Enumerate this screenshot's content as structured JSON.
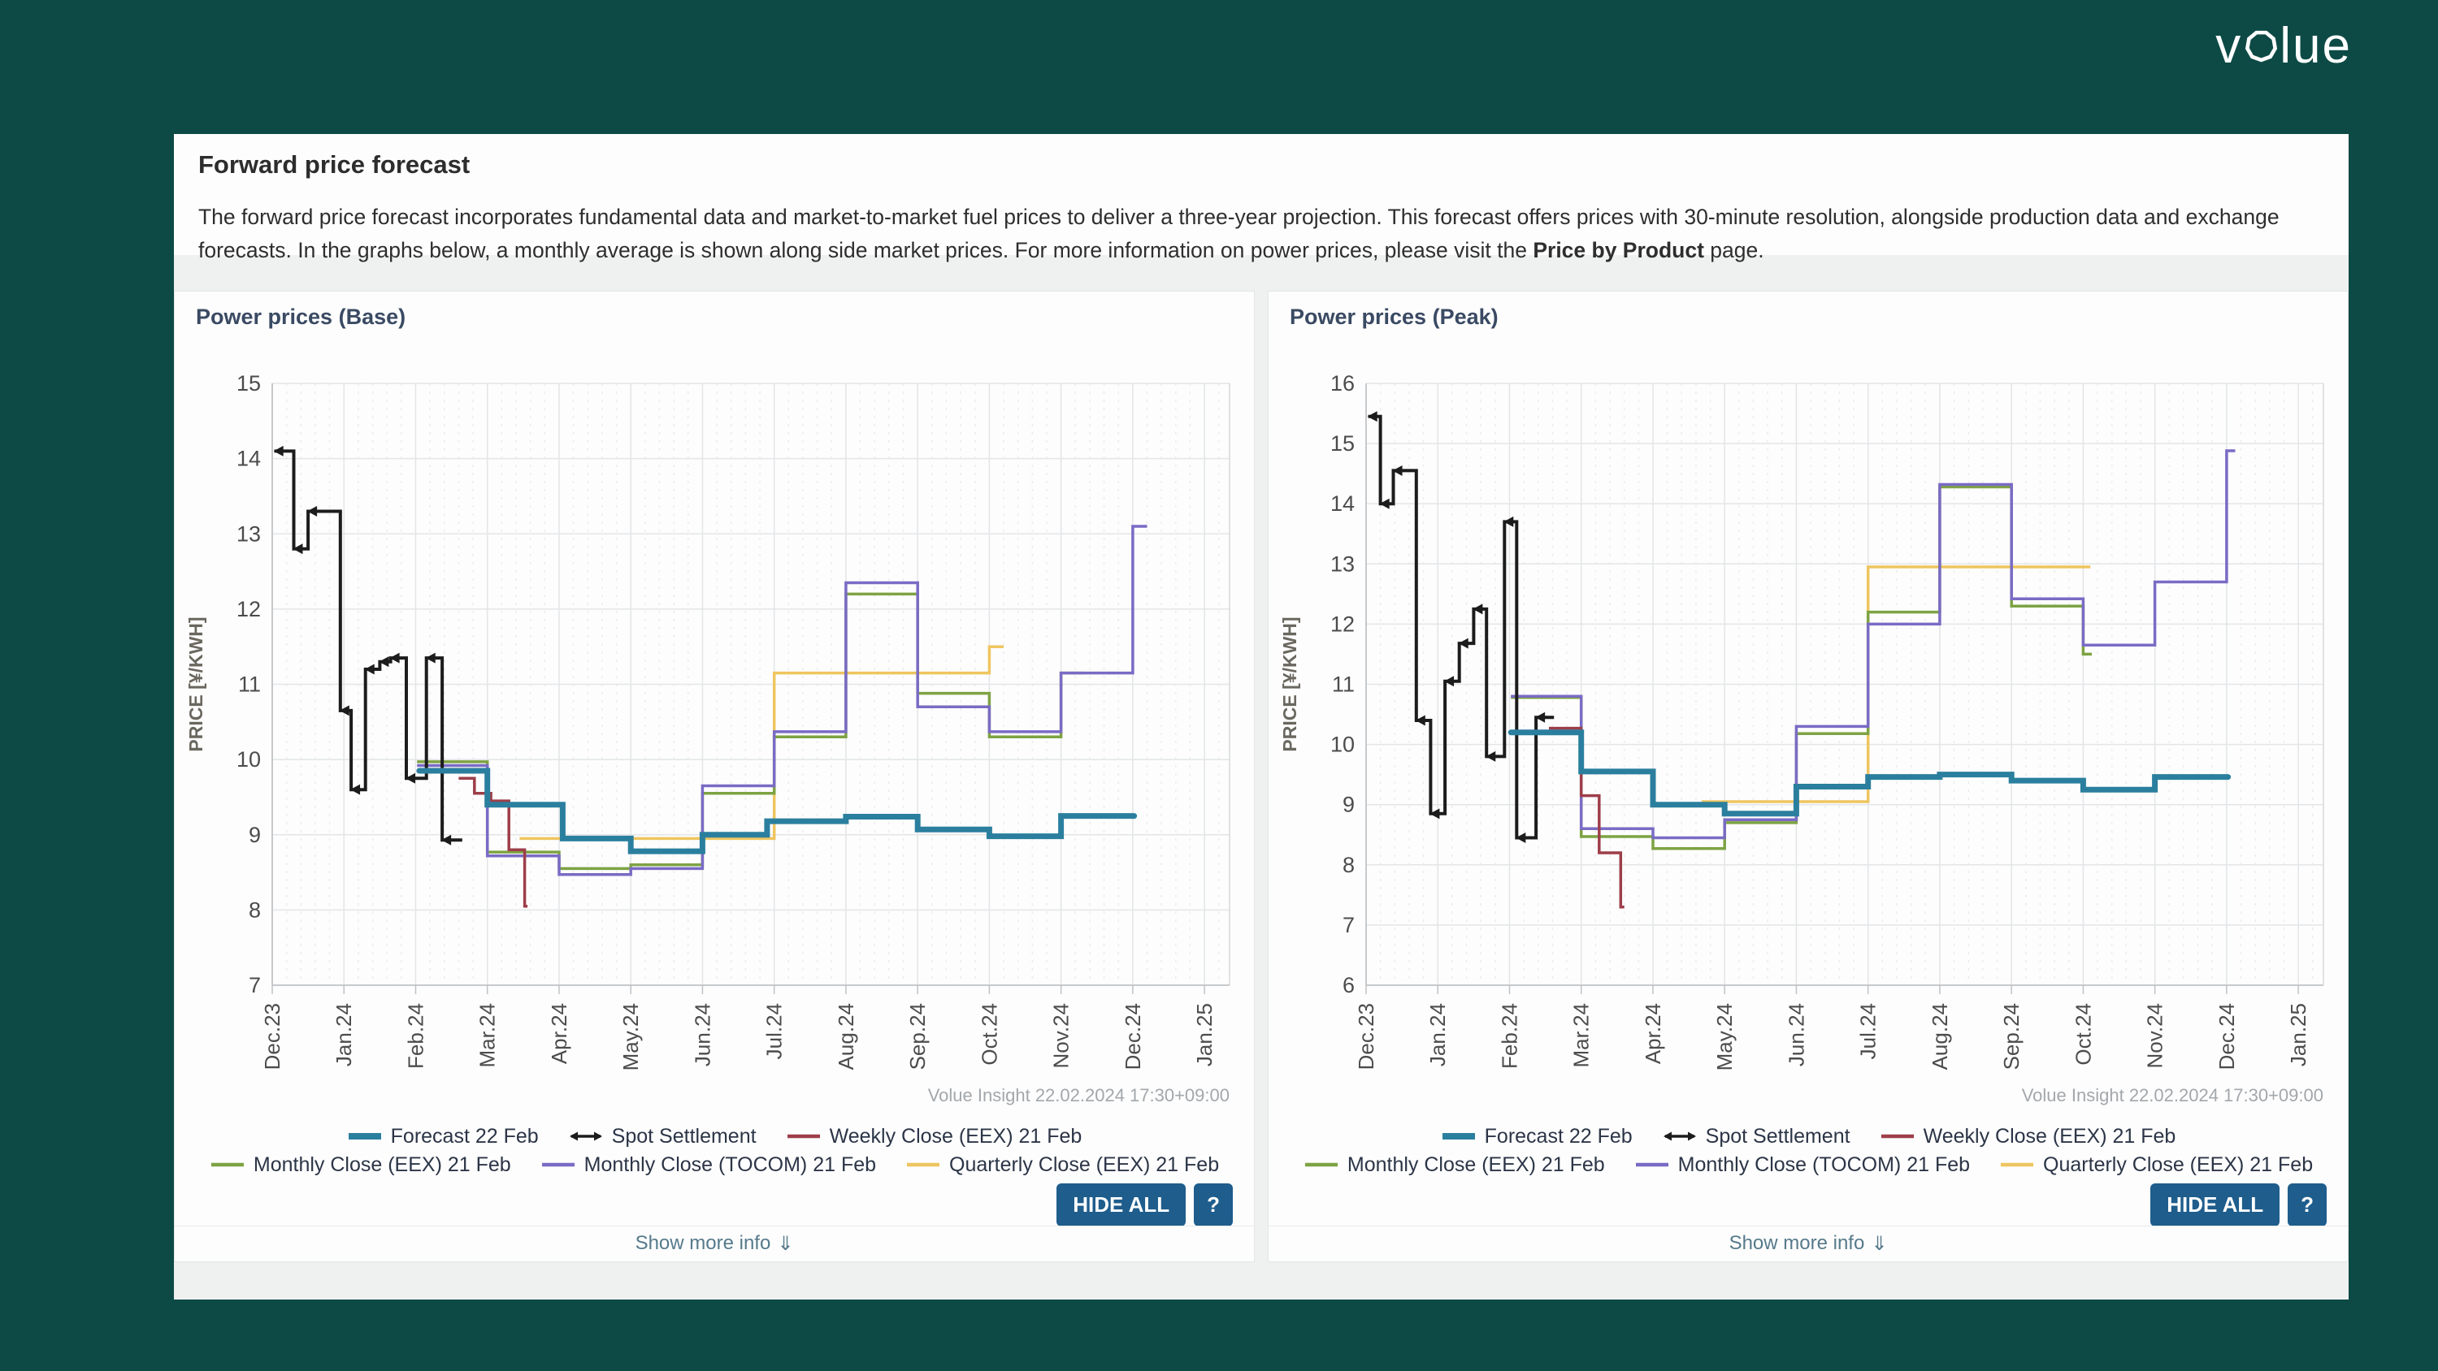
{
  "page": {
    "logo_alt": "volue",
    "logo_prefix": "v",
    "logo_suffix": "lue",
    "colors": {
      "background": "#0d4a46",
      "button": "#1e5d8c",
      "panel": "#fdfdfd"
    }
  },
  "header": {
    "title": "Forward price forecast",
    "description_before": "The forward price forecast incorporates fundamental data and market-to-market fuel prices to deliver a three-year projection. This forecast offers prices with 30-minute resolution, alongside production data and exchange forecasts. In the graphs below, a monthly average is shown along side market prices. For more information on power prices, please visit the ",
    "description_link": "Price by Product",
    "description_after": " page."
  },
  "chart_data": [
    {
      "type": "line",
      "title": "Power prices (Base)",
      "ylabel": "PRICE [¥/KWH]",
      "ylim": [
        7,
        15
      ],
      "ytick_step": 1,
      "x_labels": [
        "Dec.23",
        "Jan.24",
        "Feb.24",
        "Mar.24",
        "Apr.24",
        "May.24",
        "Jun.24",
        "Jul.24",
        "Aug.24",
        "Sep.24",
        "Oct.24",
        "Nov.24",
        "Dec.24",
        "Jan.25"
      ],
      "x_range": [
        0,
        13.35
      ],
      "grid": true,
      "watermark": "Volue Insight 22.02.2024 17:30+09:00",
      "legend_rows": [
        [
          "Forecast 22 Feb",
          "Spot Settlement",
          "Weekly Close (EEX) 21 Feb"
        ],
        [
          "Monthly Close (EEX) 21 Feb",
          "Monthly Close (TOCOM) 21 Feb",
          "Quarterly Close (EEX) 21 Feb"
        ]
      ],
      "buttons": {
        "hide_all": "HIDE ALL",
        "help": "?"
      },
      "show_more": {
        "label": "Show more info",
        "icon": "⇓"
      },
      "series": [
        {
          "name": "Forecast 22 Feb",
          "color": "#2b7f9e",
          "width": 7,
          "style": "thick",
          "points": [
            [
              2.05,
              9.85
            ],
            [
              3,
              9.4
            ],
            [
              4.05,
              8.95
            ],
            [
              5,
              8.78
            ],
            [
              6,
              9.0
            ],
            [
              6.9,
              9.18
            ],
            [
              8,
              9.24
            ],
            [
              9,
              9.07
            ],
            [
              10,
              8.98
            ],
            [
              11,
              9.25
            ]
          ],
          "end": 12.02
        },
        {
          "name": "Spot Settlement",
          "color": "#1c1c1c",
          "width": 4,
          "style": "arrow-markers",
          "points": [
            [
              0.03,
              14.1
            ],
            [
              0.3,
              12.8
            ],
            [
              0.5,
              13.3
            ],
            [
              0.95,
              10.65
            ],
            [
              1.1,
              9.6
            ],
            [
              1.3,
              11.2
            ],
            [
              1.5,
              11.3
            ],
            [
              1.65,
              11.35
            ],
            [
              1.87,
              9.75
            ],
            [
              2.15,
              11.35
            ],
            [
              2.37,
              8.93
            ]
          ],
          "end": 2.65
        },
        {
          "name": "Weekly Close (EEX) 21 Feb",
          "color": "#9d3e49",
          "width": 3.5,
          "style": "line",
          "points": [
            [
              2.6,
              9.75
            ],
            [
              2.82,
              9.55
            ],
            [
              3.05,
              9.45
            ],
            [
              3.3,
              8.8
            ],
            [
              3.52,
              8.05
            ]
          ],
          "end": 3.56
        },
        {
          "name": "Monthly Close (EEX) 21 Feb",
          "color": "#7da343",
          "width": 3.5,
          "style": "line",
          "points": [
            [
              2.02,
              9.97
            ],
            [
              3,
              8.77
            ],
            [
              4,
              8.55
            ],
            [
              5,
              8.6
            ],
            [
              6,
              9.55
            ],
            [
              7,
              10.3
            ],
            [
              8,
              12.2
            ],
            [
              9,
              10.88
            ],
            [
              10,
              10.3
            ],
            [
              11,
              11.15
            ]
          ],
          "end": 11.3
        },
        {
          "name": "Monthly Close (TOCOM) 21 Feb",
          "color": "#7a6bc5",
          "width": 3.5,
          "style": "line",
          "points": [
            [
              2.02,
              9.92
            ],
            [
              3,
              8.72
            ],
            [
              4,
              8.47
            ],
            [
              5,
              8.55
            ],
            [
              6,
              9.65
            ],
            [
              7,
              10.37
            ],
            [
              8,
              12.35
            ],
            [
              9,
              10.7
            ],
            [
              10,
              10.37
            ],
            [
              11,
              11.15
            ],
            [
              12,
              13.1
            ]
          ],
          "end": 12.2
        },
        {
          "name": "Quarterly Close (EEX) 21 Feb",
          "color": "#eec55f",
          "width": 3.5,
          "style": "line",
          "points": [
            [
              3.45,
              8.95
            ],
            [
              7,
              11.15
            ],
            [
              10,
              11.5
            ]
          ],
          "end": 10.2
        }
      ]
    },
    {
      "type": "line",
      "title": "Power prices (Peak)",
      "ylabel": "PRICE [¥/KWH]",
      "ylim": [
        6,
        16
      ],
      "ytick_step": 1,
      "x_labels": [
        "Dec.23",
        "Jan.24",
        "Feb.24",
        "Mar.24",
        "Apr.24",
        "May.24",
        "Jun.24",
        "Jul.24",
        "Aug.24",
        "Sep.24",
        "Oct.24",
        "Nov.24",
        "Dec.24",
        "Jan.25"
      ],
      "x_range": [
        0,
        13.35
      ],
      "grid": true,
      "watermark": "Volue Insight 22.02.2024 17:30+09:00",
      "legend_rows": [
        [
          "Forecast 22 Feb",
          "Spot Settlement",
          "Weekly Close (EEX) 21 Feb"
        ],
        [
          "Monthly Close (EEX) 21 Feb",
          "Monthly Close (TOCOM) 21 Feb",
          "Quarterly Close (EEX) 21 Feb"
        ]
      ],
      "buttons": {
        "hide_all": "HIDE ALL",
        "help": "?"
      },
      "show_more": {
        "label": "Show more info",
        "icon": "⇓"
      },
      "series": [
        {
          "name": "Forecast 22 Feb",
          "color": "#2b7f9e",
          "width": 7,
          "style": "thick",
          "points": [
            [
              2.02,
              10.2
            ],
            [
              3,
              9.55
            ],
            [
              4,
              9.0
            ],
            [
              5,
              8.85
            ],
            [
              6,
              9.3
            ],
            [
              7,
              9.46
            ],
            [
              8,
              9.5
            ],
            [
              9,
              9.4
            ],
            [
              10,
              9.25
            ],
            [
              11,
              9.46
            ]
          ],
          "end": 12.02
        },
        {
          "name": "Spot Settlement",
          "color": "#1c1c1c",
          "width": 4,
          "style": "arrow-markers",
          "points": [
            [
              0.03,
              15.45
            ],
            [
              0.2,
              14.0
            ],
            [
              0.38,
              14.55
            ],
            [
              0.7,
              10.4
            ],
            [
              0.9,
              8.85
            ],
            [
              1.1,
              11.05
            ],
            [
              1.3,
              11.68
            ],
            [
              1.5,
              12.25
            ],
            [
              1.68,
              9.8
            ],
            [
              1.93,
              13.7
            ],
            [
              2.1,
              8.45
            ],
            [
              2.37,
              10.45
            ]
          ],
          "end": 2.62
        },
        {
          "name": "Weekly Close (EEX) 21 Feb",
          "color": "#9d3e49",
          "width": 3.5,
          "style": "line",
          "points": [
            [
              2.55,
              10.27
            ],
            [
              3.0,
              9.15
            ],
            [
              3.25,
              8.2
            ],
            [
              3.55,
              7.3
            ]
          ],
          "end": 3.6
        },
        {
          "name": "Monthly Close (EEX) 21 Feb",
          "color": "#7da343",
          "width": 3.5,
          "style": "line",
          "points": [
            [
              2.02,
              10.78
            ],
            [
              3,
              8.47
            ],
            [
              4,
              8.27
            ],
            [
              5,
              8.7
            ],
            [
              6,
              10.18
            ],
            [
              7,
              12.2
            ],
            [
              8,
              14.28
            ],
            [
              9,
              12.3
            ],
            [
              10,
              11.5
            ]
          ],
          "end": 10.12
        },
        {
          "name": "Monthly Close (TOCOM) 21 Feb",
          "color": "#7a6bc5",
          "width": 3.5,
          "style": "line",
          "points": [
            [
              2.02,
              10.8
            ],
            [
              3,
              8.6
            ],
            [
              4,
              8.45
            ],
            [
              5,
              8.75
            ],
            [
              6,
              10.3
            ],
            [
              7,
              12.0
            ],
            [
              8,
              14.32
            ],
            [
              9,
              12.42
            ],
            [
              10,
              11.65
            ],
            [
              11,
              12.7
            ],
            [
              12,
              14.88
            ]
          ],
          "end": 12.12
        },
        {
          "name": "Quarterly Close (EEX) 21 Feb",
          "color": "#eec55f",
          "width": 3.5,
          "style": "line",
          "points": [
            [
              4.68,
              9.05
            ],
            [
              7,
              12.95
            ]
          ],
          "end": 10.1
        }
      ]
    }
  ]
}
